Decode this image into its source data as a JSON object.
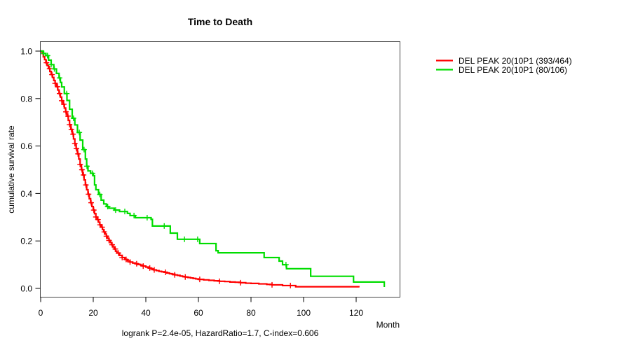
{
  "chart_data": {
    "type": "line",
    "subtype": "kaplan_meier_step",
    "title": "Time to Death",
    "xlabel": "Month",
    "ylabel": "cumulative survival rate",
    "xlim": [
      0,
      136
    ],
    "ylim": [
      0,
      1
    ],
    "grid": false,
    "legend_position": "right-outside",
    "annotation": "logrank P=2.4e-05, HazardRatio=1.7, C-index=0.606",
    "x_ticks": [
      0,
      20,
      40,
      60,
      80,
      100,
      120
    ],
    "y_tick_labels": [
      "0.0",
      "0.2",
      "0.4",
      "0.6",
      "0.8",
      "1.0"
    ],
    "series": [
      {
        "name": "DEL PEAK 20(10P1 (393/464)",
        "color": "#ff0000",
        "color_name": "red",
        "points": [
          [
            0,
            1.0
          ],
          [
            0.5,
            0.99
          ],
          [
            1,
            0.976
          ],
          [
            1.5,
            0.964
          ],
          [
            2,
            0.951
          ],
          [
            2.5,
            0.939
          ],
          [
            3,
            0.926
          ],
          [
            3.5,
            0.914
          ],
          [
            4,
            0.901
          ],
          [
            4.5,
            0.889
          ],
          [
            5,
            0.876
          ],
          [
            5.5,
            0.864
          ],
          [
            6,
            0.85
          ],
          [
            6.5,
            0.836
          ],
          [
            7,
            0.821
          ],
          [
            7.5,
            0.806
          ],
          [
            8,
            0.791
          ],
          [
            8.5,
            0.776
          ],
          [
            9,
            0.76
          ],
          [
            9.5,
            0.744
          ],
          [
            10,
            0.726
          ],
          [
            10.5,
            0.708
          ],
          [
            11,
            0.69
          ],
          [
            11.5,
            0.67
          ],
          [
            12,
            0.65
          ],
          [
            12.5,
            0.63
          ],
          [
            13,
            0.61
          ],
          [
            13.5,
            0.589
          ],
          [
            14,
            0.567
          ],
          [
            14.5,
            0.545
          ],
          [
            15,
            0.522
          ],
          [
            15.5,
            0.5
          ],
          [
            16,
            0.478
          ],
          [
            16.5,
            0.457
          ],
          [
            17,
            0.436
          ],
          [
            17.5,
            0.416
          ],
          [
            18,
            0.397
          ],
          [
            18.5,
            0.378
          ],
          [
            19,
            0.361
          ],
          [
            19.5,
            0.345
          ],
          [
            20,
            0.33
          ],
          [
            20.5,
            0.315
          ],
          [
            21,
            0.301
          ],
          [
            21.5,
            0.29
          ],
          [
            22,
            0.279
          ],
          [
            22.5,
            0.268
          ],
          [
            23,
            0.258
          ],
          [
            23.5,
            0.248
          ],
          [
            24,
            0.238
          ],
          [
            24.5,
            0.229
          ],
          [
            25,
            0.22
          ],
          [
            25.5,
            0.211
          ],
          [
            26,
            0.202
          ],
          [
            26.5,
            0.193
          ],
          [
            27,
            0.184
          ],
          [
            27.5,
            0.175
          ],
          [
            28,
            0.166
          ],
          [
            28.5,
            0.157
          ],
          [
            29,
            0.149
          ],
          [
            30,
            0.139
          ],
          [
            31,
            0.13
          ],
          [
            32,
            0.122
          ],
          [
            33,
            0.116
          ],
          [
            34,
            0.111
          ],
          [
            35,
            0.107
          ],
          [
            36,
            0.104
          ],
          [
            37,
            0.101
          ],
          [
            38,
            0.098
          ],
          [
            39,
            0.094
          ],
          [
            40,
            0.09
          ],
          [
            41,
            0.086
          ],
          [
            42,
            0.082
          ],
          [
            43,
            0.078
          ],
          [
            44,
            0.075
          ],
          [
            45,
            0.072
          ],
          [
            46,
            0.07
          ],
          [
            47,
            0.068
          ],
          [
            48,
            0.065
          ],
          [
            49,
            0.062
          ],
          [
            50,
            0.06
          ],
          [
            51,
            0.057
          ],
          [
            52,
            0.055
          ],
          [
            53,
            0.052
          ],
          [
            54,
            0.05
          ],
          [
            55,
            0.048
          ],
          [
            56,
            0.046
          ],
          [
            57,
            0.044
          ],
          [
            58,
            0.042
          ],
          [
            59,
            0.04
          ],
          [
            60,
            0.038
          ],
          [
            62,
            0.036
          ],
          [
            64,
            0.034
          ],
          [
            66,
            0.032
          ],
          [
            68,
            0.03
          ],
          [
            70,
            0.029
          ],
          [
            72,
            0.027
          ],
          [
            74,
            0.026
          ],
          [
            76,
            0.024
          ],
          [
            78,
            0.022
          ],
          [
            80,
            0.021
          ],
          [
            83,
            0.019
          ],
          [
            86,
            0.017
          ],
          [
            88,
            0.015
          ],
          [
            92,
            0.012
          ],
          [
            97,
            0.007
          ],
          [
            121,
            0.004
          ]
        ],
        "censor_times": [
          2.2,
          3.4,
          4.3,
          5.5,
          6.4,
          7.2,
          8.0,
          8.8,
          9.6,
          10.4,
          11.0,
          11.7,
          12.3,
          13.0,
          13.6,
          14.2,
          15.0,
          15.7,
          16.3,
          17.2,
          18.2,
          19.2,
          20.2,
          21.0,
          21.8,
          22.6,
          23.4,
          24.2,
          25.0,
          26.0,
          27.2,
          28.4,
          29.6,
          31.0,
          32.5,
          34.0,
          36.5,
          39.0,
          41.5,
          43.2,
          47.5,
          51.0,
          55.0,
          60.5,
          68.0,
          76.0,
          88.0,
          95.0
        ]
      },
      {
        "name": "DEL PEAK 20(10P1 (80/106)",
        "color": "#00dd00",
        "color_name": "green",
        "points": [
          [
            0,
            1.0
          ],
          [
            1,
            0.99
          ],
          [
            2,
            0.981
          ],
          [
            3,
            0.962
          ],
          [
            4,
            0.943
          ],
          [
            5,
            0.925
          ],
          [
            6,
            0.906
          ],
          [
            7,
            0.887
          ],
          [
            7.5,
            0.868
          ],
          [
            8,
            0.849
          ],
          [
            9,
            0.821
          ],
          [
            10,
            0.792
          ],
          [
            11,
            0.755
          ],
          [
            12,
            0.717
          ],
          [
            13,
            0.689
          ],
          [
            14,
            0.657
          ],
          [
            15,
            0.625
          ],
          [
            16,
            0.585
          ],
          [
            17,
            0.545
          ],
          [
            17.5,
            0.515
          ],
          [
            18,
            0.495
          ],
          [
            19,
            0.485
          ],
          [
            20,
            0.475
          ],
          [
            20.5,
            0.436
          ],
          [
            21,
            0.416
          ],
          [
            22,
            0.396
          ],
          [
            23,
            0.372
          ],
          [
            24,
            0.356
          ],
          [
            25,
            0.345
          ],
          [
            26,
            0.338
          ],
          [
            28,
            0.33
          ],
          [
            30,
            0.324
          ],
          [
            33,
            0.316
          ],
          [
            34,
            0.307
          ],
          [
            36,
            0.298
          ],
          [
            42,
            0.291
          ],
          [
            42.5,
            0.263
          ],
          [
            49.3,
            0.233
          ],
          [
            52,
            0.207
          ],
          [
            60.5,
            0.189
          ],
          [
            66.7,
            0.159
          ],
          [
            67.5,
            0.15
          ],
          [
            85,
            0.13
          ],
          [
            90.7,
            0.115
          ],
          [
            92,
            0.1
          ],
          [
            93.5,
            0.083
          ],
          [
            102.7,
            0.051
          ],
          [
            119,
            0.027
          ],
          [
            130.7,
            0.006
          ]
        ],
        "censor_times": [
          1.2,
          2.6,
          4.0,
          5.2,
          7.2,
          9.9,
          12.5,
          14.7,
          16.5,
          17.6,
          19.7,
          22.5,
          25.5,
          28.5,
          32.0,
          35.5,
          40.5,
          47.0,
          54.7,
          59.7,
          93.3
        ]
      }
    ]
  }
}
